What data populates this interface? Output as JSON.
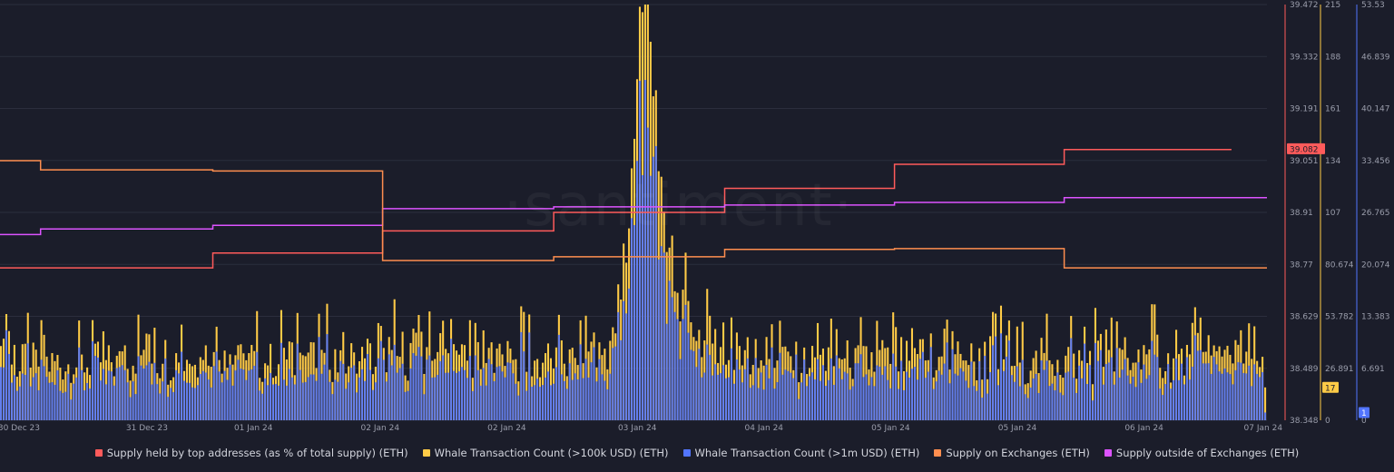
{
  "watermark": "·santiment·",
  "legend": [
    {
      "label": "Supply held by top addresses (as % of total supply) (ETH)",
      "color": "#ff5b5b"
    },
    {
      "label": "Whale Transaction Count (>100k USD) (ETH)",
      "color": "#ffcb47"
    },
    {
      "label": "Whale Transaction Count (>1m USD) (ETH)",
      "color": "#5275ff"
    },
    {
      "label": "Supply on Exchanges (ETH)",
      "color": "#ff8e4f"
    },
    {
      "label": "Supply outside of Exchanges (ETH)",
      "color": "#dc53ff"
    }
  ],
  "chart_data": {
    "type": "bar",
    "x_tick_labels": [
      "30 Dec 23",
      "31 Dec 23",
      "01 Jan 24",
      "02 Jan 24",
      "02 Jan 24",
      "03 Jan 24",
      "04 Jan 24",
      "05 Jan 24",
      "05 Jan 24",
      "06 Jan 24",
      "07 Jan 24"
    ],
    "axes": [
      {
        "id": "top_holders",
        "color": "#ff5b5b",
        "ticks": [
          "39.472",
          "39.332",
          "39.191",
          "39.051",
          "38.91",
          "38.77",
          "38.629",
          "38.489",
          "38.348"
        ],
        "range": [
          38.348,
          39.472
        ],
        "current": "39.082"
      },
      {
        "id": "whale_100k",
        "color": "#ffcb47",
        "ticks": [
          "215",
          "188",
          "161",
          "134",
          "107",
          "80.674",
          "53.782",
          "26.891",
          "0"
        ],
        "range": [
          0,
          215
        ],
        "current": "17"
      },
      {
        "id": "whale_1m",
        "color": "#5275ff",
        "ticks": [
          "53.53",
          "46.839",
          "40.147",
          "33.456",
          "26.765",
          "20.074",
          "13.383",
          "6.691",
          "0"
        ],
        "range": [
          0,
          53.53
        ],
        "current": "1"
      }
    ],
    "series": [
      {
        "name": "Supply held by top addresses (as % of total supply) (ETH)",
        "type": "step-line",
        "axis": "top_holders",
        "points": [
          [
            0,
            38.76
          ],
          [
            0.042,
            38.76
          ],
          [
            0.042,
            38.76
          ],
          [
            0.168,
            38.76
          ],
          [
            0.168,
            38.8
          ],
          [
            0.302,
            38.8
          ],
          [
            0.302,
            38.86
          ],
          [
            0.437,
            38.86
          ],
          [
            0.437,
            38.91
          ],
          [
            0.572,
            38.91
          ],
          [
            0.572,
            38.975
          ],
          [
            0.706,
            38.975
          ],
          [
            0.706,
            39.04
          ],
          [
            0.84,
            39.04
          ],
          [
            0.84,
            39.08
          ],
          [
            0.972,
            39.08
          ]
        ]
      },
      {
        "name": "Supply outside of Exchanges (ETH)",
        "type": "step-line",
        "axis": "top_holders",
        "points": [
          [
            0,
            38.85
          ],
          [
            0.032,
            38.85
          ],
          [
            0.032,
            38.865
          ],
          [
            0.168,
            38.865
          ],
          [
            0.168,
            38.875
          ],
          [
            0.302,
            38.875
          ],
          [
            0.302,
            38.92
          ],
          [
            0.437,
            38.92
          ],
          [
            0.437,
            38.925
          ],
          [
            0.572,
            38.925
          ],
          [
            0.572,
            38.93
          ],
          [
            0.706,
            38.93
          ],
          [
            0.706,
            38.937
          ],
          [
            0.84,
            38.937
          ],
          [
            0.84,
            38.95
          ],
          [
            1,
            38.95
          ]
        ]
      },
      {
        "name": "Supply on Exchanges (ETH)",
        "type": "step-line",
        "axis": "top_holders",
        "points": [
          [
            0,
            39.05
          ],
          [
            0.032,
            39.05
          ],
          [
            0.032,
            39.025
          ],
          [
            0.168,
            39.025
          ],
          [
            0.168,
            39.022
          ],
          [
            0.302,
            39.022
          ],
          [
            0.302,
            38.78
          ],
          [
            0.437,
            38.78
          ],
          [
            0.437,
            38.79
          ],
          [
            0.572,
            38.79
          ],
          [
            0.572,
            38.81
          ],
          [
            0.706,
            38.81
          ],
          [
            0.706,
            38.812
          ],
          [
            0.84,
            38.812
          ],
          [
            0.84,
            38.76
          ],
          [
            1,
            38.76
          ]
        ]
      },
      {
        "name": "Whale Transaction Count (>100k USD) (ETH)",
        "type": "bar",
        "axis": "whale_100k",
        "typical_range": [
          10,
          80
        ],
        "peak": {
          "x": 0.51,
          "value": 215
        },
        "last": 17
      },
      {
        "name": "Whale Transaction Count (>1m USD) (ETH)",
        "type": "bar",
        "axis": "whale_1m",
        "typical_range": [
          2,
          14
        ],
        "peak": {
          "x": 0.51,
          "value": 53.53
        },
        "last": 1
      }
    ]
  }
}
